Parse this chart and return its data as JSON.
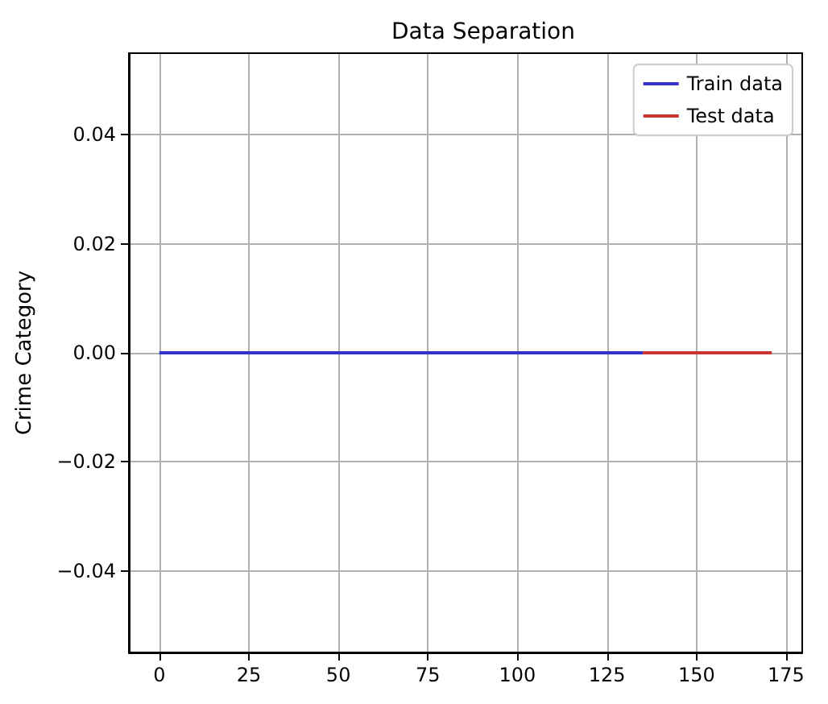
{
  "chart_data": {
    "type": "line",
    "title": "Data Separation",
    "ylabel": "Crime Category",
    "series": [
      {
        "name": "Train data",
        "color": "#3333cc",
        "x": [
          0,
          135
        ],
        "values": [
          0,
          0
        ]
      },
      {
        "name": "Test data",
        "color": "#cc3333",
        "x": [
          135,
          171
        ],
        "values": [
          0,
          0
        ]
      }
    ],
    "xlim": [
      -8.5,
      179.5
    ],
    "xticks": [
      0,
      25,
      50,
      75,
      100,
      125,
      150,
      175
    ],
    "ylim": [
      -0.055,
      0.055
    ],
    "yticks": [
      {
        "value": -0.04,
        "label": "−0.04"
      },
      {
        "value": -0.02,
        "label": "−0.02"
      },
      {
        "value": 0,
        "label": "0.00"
      },
      {
        "value": 0.02,
        "label": "0.02"
      },
      {
        "value": 0.04,
        "label": "0.04"
      }
    ],
    "grid": true,
    "legend": "top right",
    "marker": "none",
    "line_style": "solid"
  }
}
